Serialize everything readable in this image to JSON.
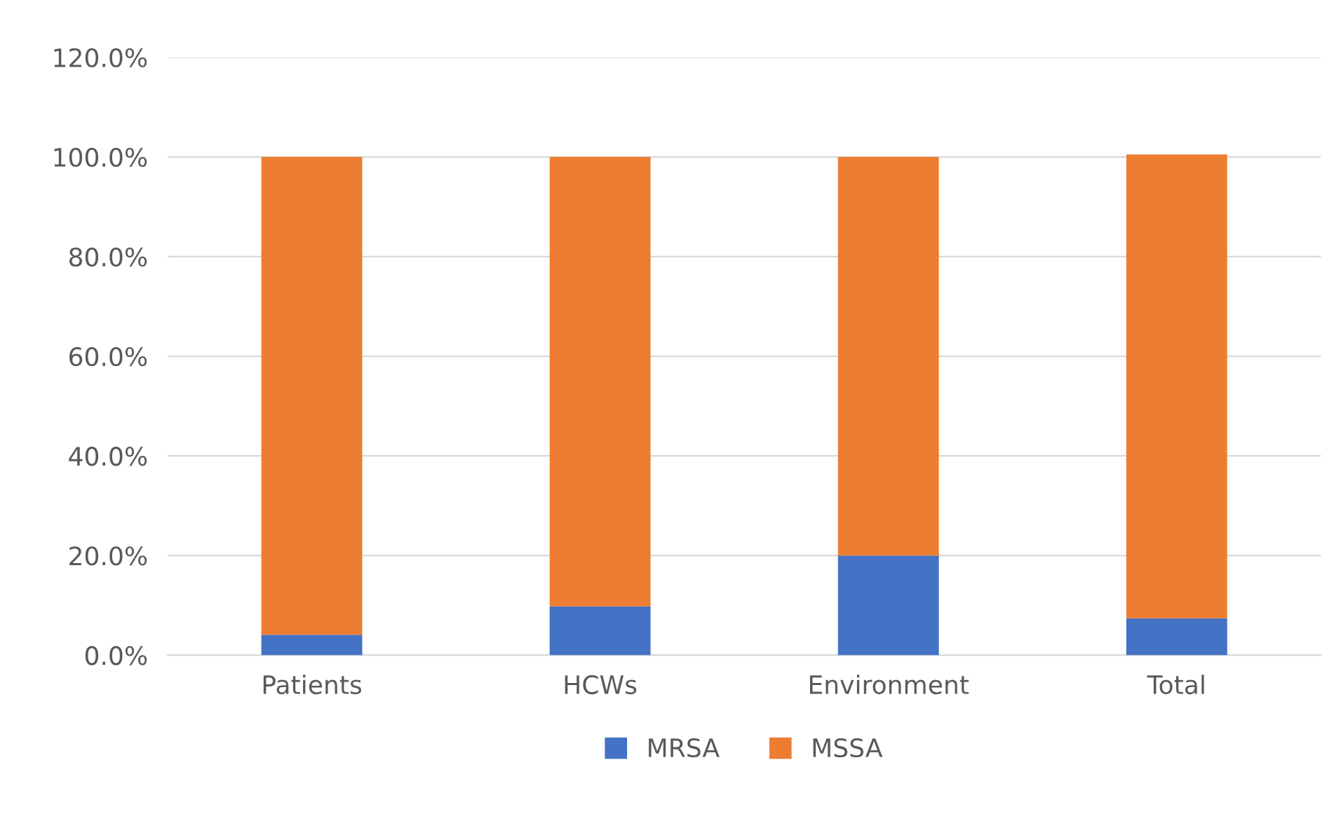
{
  "chart_data": {
    "type": "bar",
    "stacked": true,
    "categories": [
      "Patients",
      "HCWs",
      "Environment",
      "Total"
    ],
    "series": [
      {
        "name": "MRSA",
        "color": "#4472c4",
        "values": [
          4.1,
          9.8,
          20.0,
          7.4
        ]
      },
      {
        "name": "MSSA",
        "color": "#ed7d31",
        "values": [
          95.9,
          90.2,
          80.0,
          93.1
        ]
      }
    ],
    "ylim": [
      0,
      120
    ],
    "yticks": [
      {
        "value": 0,
        "label": "0.0%"
      },
      {
        "value": 20,
        "label": "20.0%"
      },
      {
        "value": 40,
        "label": "40.0%"
      },
      {
        "value": 60,
        "label": "60.0%"
      },
      {
        "value": 80,
        "label": "80.0%"
      },
      {
        "value": 100,
        "label": "100.0%"
      },
      {
        "value": 120,
        "label": "120.0%"
      }
    ],
    "grid": "y",
    "legend": "bottom"
  }
}
